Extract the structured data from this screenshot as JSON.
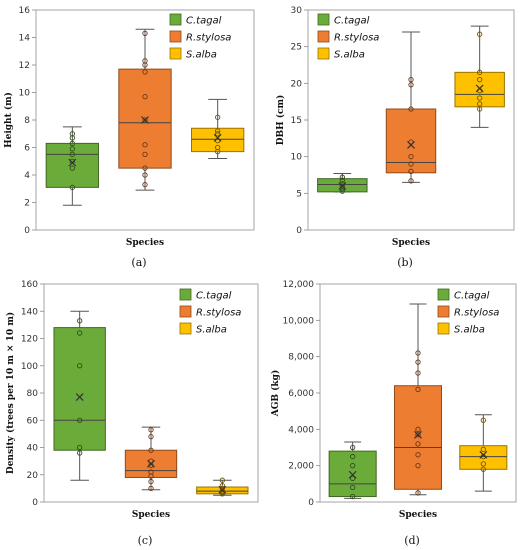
{
  "chart_data": [
    {
      "type": "box",
      "panel_label": "(a)",
      "xlabel": "Species",
      "ylabel": "Height (m)",
      "ylim": [
        0,
        16
      ],
      "yticks": [
        0,
        2,
        4,
        6,
        8,
        10,
        12,
        14,
        16
      ],
      "ytick_labels": [
        "0",
        "2",
        "4",
        "6",
        "8",
        "10",
        "12",
        "14",
        "16"
      ],
      "legend_position": "top-right",
      "series": [
        {
          "name": "C.tagal",
          "color": "#6aab3a",
          "whisker_low": 1.8,
          "q1": 3.1,
          "median": 5.5,
          "q3": 6.3,
          "whisker_high": 7.5,
          "mean": 4.9,
          "points": [
            3.1,
            4.5,
            5.0,
            5.5,
            5.9,
            6.3,
            6.7,
            7.0
          ]
        },
        {
          "name": "R.stylosa",
          "color": "#ed7d31",
          "whisker_low": 2.9,
          "q1": 4.5,
          "median": 7.8,
          "q3": 11.7,
          "whisker_high": 14.6,
          "mean": 8.0,
          "points": [
            3.3,
            4.0,
            4.5,
            5.5,
            6.2,
            8.0,
            9.7,
            11.5,
            12.0,
            12.3,
            14.3
          ]
        },
        {
          "name": "S.alba",
          "color": "#ffc000",
          "whisker_low": 5.2,
          "q1": 5.7,
          "median": 6.6,
          "q3": 7.4,
          "whisker_high": 9.5,
          "mean": 6.7,
          "points": [
            5.7,
            6.0,
            6.5,
            7.0,
            7.2,
            8.2
          ]
        }
      ]
    },
    {
      "type": "box",
      "panel_label": "(b)",
      "xlabel": "Species",
      "ylabel": "DBH (cm)",
      "ylim": [
        0,
        30
      ],
      "yticks": [
        0,
        5,
        10,
        15,
        20,
        25,
        30
      ],
      "ytick_labels": [
        "0",
        "5",
        "10",
        "15",
        "20",
        "25",
        "30"
      ],
      "legend_position": "top-left",
      "series": [
        {
          "name": "C.tagal",
          "color": "#6aab3a",
          "whisker_low": 5.2,
          "q1": 5.2,
          "median": 6.2,
          "q3": 7.0,
          "whisker_high": 7.7,
          "mean": 6.0,
          "points": [
            5.3,
            5.6,
            6.0,
            6.3,
            6.8,
            7.2
          ]
        },
        {
          "name": "R.stylosa",
          "color": "#ed7d31",
          "whisker_low": 6.5,
          "q1": 7.8,
          "median": 9.2,
          "q3": 16.5,
          "whisker_high": 27.0,
          "mean": 11.6,
          "points": [
            6.7,
            8.0,
            9.0,
            10.0,
            12.0,
            16.5,
            19.8,
            20.5
          ]
        },
        {
          "name": "S.alba",
          "color": "#ffc000",
          "whisker_low": 14.0,
          "q1": 16.8,
          "median": 18.5,
          "q3": 21.5,
          "whisker_high": 27.8,
          "mean": 19.3,
          "points": [
            16.5,
            17.2,
            18.0,
            19.0,
            20.5,
            21.5,
            26.7
          ]
        }
      ]
    },
    {
      "type": "box",
      "panel_label": "(c)",
      "xlabel": "Species",
      "ylabel": "Density (trees per 10 m × 10 m)",
      "ylim": [
        0,
        160
      ],
      "yticks": [
        0,
        20,
        40,
        60,
        80,
        100,
        120,
        140,
        160
      ],
      "ytick_labels": [
        "0",
        "20",
        "40",
        "60",
        "80",
        "100",
        "120",
        "140",
        "160"
      ],
      "legend_position": "top-right",
      "series": [
        {
          "name": "C.tagal",
          "color": "#6aab3a",
          "whisker_low": 16,
          "q1": 38,
          "median": 60,
          "q3": 128,
          "whisker_high": 140,
          "mean": 77,
          "points": [
            36,
            40,
            60,
            100,
            124,
            133
          ]
        },
        {
          "name": "R.stylosa",
          "color": "#ed7d31",
          "whisker_low": 9,
          "q1": 18,
          "median": 23,
          "q3": 38,
          "whisker_high": 55,
          "mean": 28,
          "points": [
            10,
            15,
            19,
            22,
            27,
            30,
            38,
            48,
            53
          ]
        },
        {
          "name": "S.alba",
          "color": "#ffc000",
          "whisker_low": 5,
          "q1": 6,
          "median": 8,
          "q3": 11,
          "whisker_high": 16,
          "mean": 9,
          "points": [
            6,
            7,
            8,
            10,
            12,
            16
          ]
        }
      ]
    },
    {
      "type": "box",
      "panel_label": "(d)",
      "xlabel": "Species",
      "ylabel": "AGB (kg)",
      "ylim": [
        0,
        12000
      ],
      "yticks": [
        0,
        2000,
        4000,
        6000,
        8000,
        10000,
        12000
      ],
      "ytick_labels": [
        "0",
        "2,000",
        "4,000",
        "6,000",
        "8,000",
        "10,000",
        "12,000"
      ],
      "legend_position": "top-right",
      "series": [
        {
          "name": "C.tagal",
          "color": "#6aab3a",
          "whisker_low": 200,
          "q1": 300,
          "median": 1000,
          "q3": 2800,
          "whisker_high": 3300,
          "mean": 1500,
          "points": [
            300,
            800,
            1300,
            2000,
            2500,
            3000
          ]
        },
        {
          "name": "R.stylosa",
          "color": "#ed7d31",
          "whisker_low": 400,
          "q1": 700,
          "median": 3000,
          "q3": 6400,
          "whisker_high": 10900,
          "mean": 3700,
          "points": [
            500,
            2000,
            2600,
            3200,
            3700,
            4000,
            6200,
            7100,
            7700,
            8200
          ]
        },
        {
          "name": "S.alba",
          "color": "#ffc000",
          "whisker_low": 600,
          "q1": 1800,
          "median": 2500,
          "q3": 3100,
          "whisker_high": 4800,
          "mean": 2600,
          "points": [
            1800,
            2100,
            2500,
            2900,
            4500
          ]
        }
      ]
    }
  ]
}
